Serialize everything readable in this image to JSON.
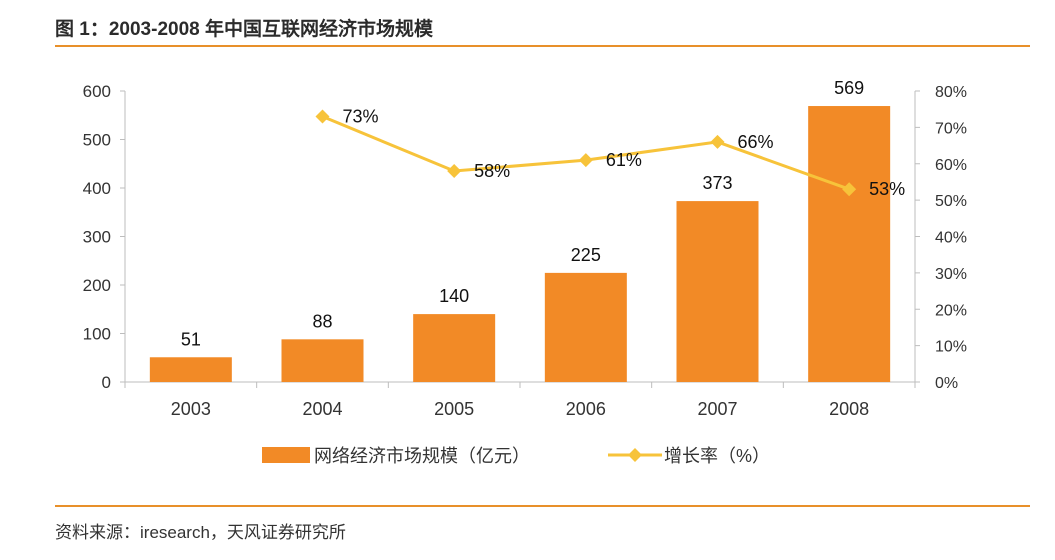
{
  "header": {
    "title": "图 1：2003-2008 年中国互联网经济市场规模"
  },
  "footer": {
    "source": "资料来源：iresearch，天风证券研究所"
  },
  "colors": {
    "bar": "#f28a26",
    "line": "#f7c33a",
    "rule": "#e8902a"
  },
  "chart_data": {
    "type": "bar",
    "categories": [
      "2003",
      "2004",
      "2005",
      "2006",
      "2007",
      "2008"
    ],
    "series": [
      {
        "name": "网络经济市场规模（亿元）",
        "type": "bar",
        "axis": "left",
        "values": [
          51,
          88,
          140,
          225,
          373,
          569
        ],
        "labels": [
          "51",
          "88",
          "140",
          "225",
          "373",
          "569"
        ]
      },
      {
        "name": "增长率（%）",
        "type": "line",
        "axis": "right",
        "values": [
          null,
          73,
          58,
          61,
          66,
          53
        ],
        "labels": [
          "",
          "73%",
          "58%",
          "61%",
          "66%",
          "53%"
        ]
      }
    ],
    "y_left": {
      "ylim": [
        0,
        600
      ],
      "ticks": [
        "0",
        "100",
        "200",
        "300",
        "400",
        "500",
        "600"
      ]
    },
    "y_right": {
      "ylim": [
        0,
        80
      ],
      "ticks": [
        "0%",
        "10%",
        "20%",
        "30%",
        "40%",
        "50%",
        "60%",
        "70%",
        "80%"
      ]
    },
    "grid": false,
    "legend_position": "bottom"
  }
}
